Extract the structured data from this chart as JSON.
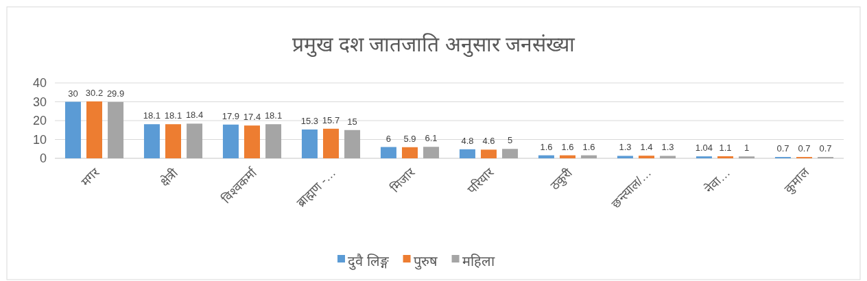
{
  "chart_data": {
    "type": "bar",
    "title": "प्रमुख दश जातजाति अनुसार जनसंख्या",
    "categories": [
      "मगर",
      "क्षेत्री",
      "विश्वकर्मा",
      "ब्राह्मण -…",
      "मिजार",
      "परियार",
      "ठकुरी",
      "छन्त्याल/…",
      "नेवा…",
      "कुमाल"
    ],
    "series": [
      {
        "name": "दुवै लिङ्ग",
        "color": "#5b9bd5",
        "values": [
          30,
          18.1,
          17.9,
          15.3,
          6,
          4.8,
          1.6,
          1.3,
          1.04,
          0.7
        ]
      },
      {
        "name": "पुरुष",
        "color": "#ed7d31",
        "values": [
          30.2,
          18.1,
          17.4,
          15.7,
          5.9,
          4.6,
          1.6,
          1.4,
          1.1,
          0.7
        ]
      },
      {
        "name": "महिला",
        "color": "#a5a5a5",
        "values": [
          29.9,
          18.4,
          18.1,
          15,
          6.1,
          5,
          1.6,
          1.3,
          1,
          0.7
        ]
      }
    ],
    "ylim": [
      0,
      40
    ],
    "yticks": [
      0,
      10,
      20,
      30,
      40
    ],
    "grid": "y",
    "legend": "bottom",
    "data_labels": true
  }
}
